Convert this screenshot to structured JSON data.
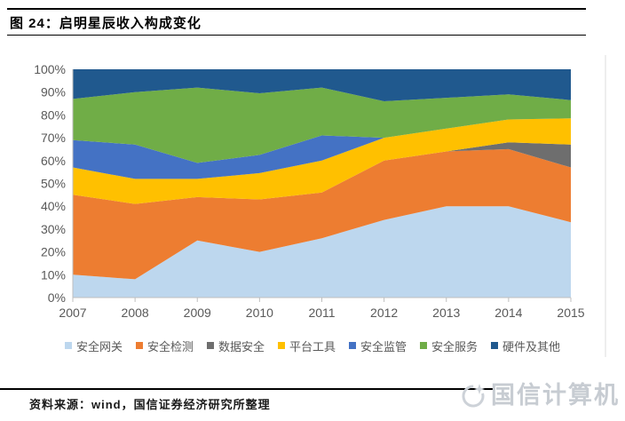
{
  "header": {
    "title": "图 24：启明星辰收入构成变化"
  },
  "chart_data": {
    "type": "area",
    "stacked": true,
    "percent": true,
    "title": "启明星辰收入构成变化",
    "xlabel": "",
    "ylabel": "",
    "ylim": [
      0,
      100
    ],
    "grid": false,
    "legend_position": "bottom",
    "axis_text_color": "#595959",
    "axis_line_color": "#bfbfbf",
    "x": [
      "2007",
      "2008",
      "2009",
      "2010",
      "2011",
      "2012",
      "2013",
      "2014",
      "2015"
    ],
    "y_ticks": [
      "0%",
      "10%",
      "20%",
      "30%",
      "40%",
      "50%",
      "60%",
      "70%",
      "80%",
      "90%",
      "100%"
    ],
    "series": [
      {
        "id": "security-gateway",
        "name": "安全网关",
        "color": "#bdd7ee",
        "values": [
          10,
          8,
          25,
          20,
          26,
          34,
          40,
          40,
          33
        ]
      },
      {
        "id": "security-detection",
        "name": "安全检测",
        "color": "#ed7d31",
        "values": [
          35,
          33,
          19,
          23,
          20,
          26,
          24,
          25,
          24
        ]
      },
      {
        "id": "data-security",
        "name": "数据安全",
        "color": "#6e6e6e",
        "values": [
          0,
          0,
          0,
          0,
          0,
          0,
          0,
          3,
          10
        ]
      },
      {
        "id": "platform-tools",
        "name": "平台工具",
        "color": "#ffc000",
        "values": [
          12,
          11,
          8,
          11.5,
          14,
          10,
          10,
          10,
          11.5
        ]
      },
      {
        "id": "security-supervision",
        "name": "安全监管",
        "color": "#4472c4",
        "values": [
          12,
          15,
          7,
          8,
          11,
          0,
          0,
          0,
          0
        ]
      },
      {
        "id": "security-service",
        "name": "安全服务",
        "color": "#70ad47",
        "values": [
          18,
          23,
          33,
          27,
          21,
          16,
          13.5,
          11,
          8
        ]
      },
      {
        "id": "hardware-other",
        "name": "硬件及其他",
        "color": "#20598e",
        "values": [
          13,
          10,
          8,
          10.5,
          8,
          14,
          12.5,
          11,
          13.5
        ]
      }
    ]
  },
  "footer": {
    "source": "资料来源：wind，国信证券经济研究所整理",
    "watermark": "国信计算机"
  }
}
